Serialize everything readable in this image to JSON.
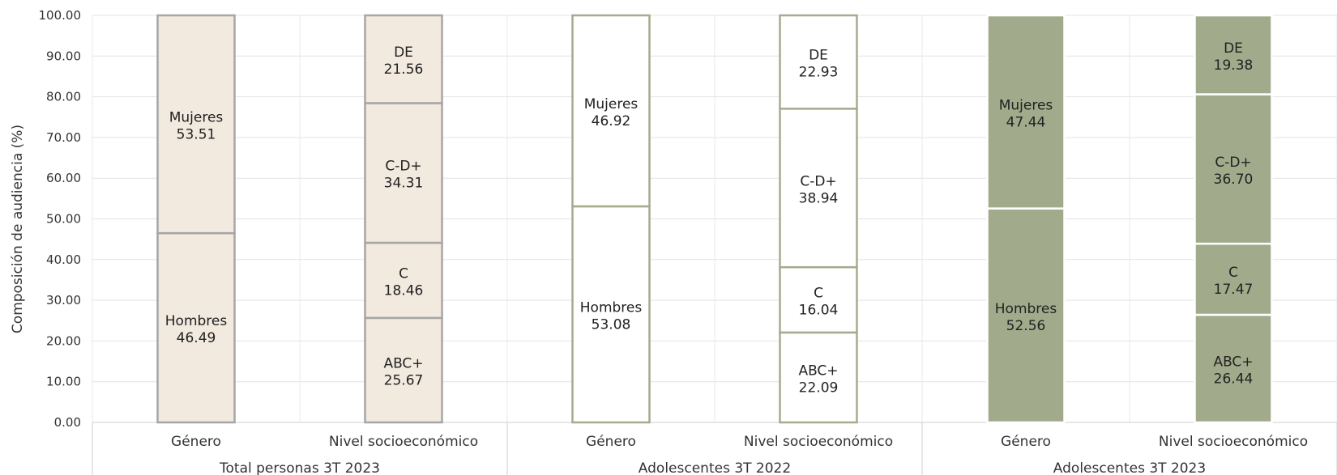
{
  "chart_data": {
    "type": "bar",
    "stacked": true,
    "ylabel": "Composición de audiencia (%)",
    "ylim": [
      0,
      100
    ],
    "yticks": [
      "0.00",
      "10.00",
      "20.00",
      "30.00",
      "40.00",
      "50.00",
      "60.00",
      "70.00",
      "80.00",
      "90.00",
      "100.00"
    ],
    "grid": true,
    "groups": [
      {
        "label": "Total personas 3T 2023",
        "fill": "#f2e9df",
        "stroke": "#a6a6a6",
        "bars": [
          {
            "category": "Género",
            "segments": [
              {
                "name": "Hombres",
                "value": 46.49,
                "value_label": "46.49"
              },
              {
                "name": "Mujeres",
                "value": 53.51,
                "value_label": "53.51"
              }
            ]
          },
          {
            "category": "Nivel socioeconómico",
            "segments": [
              {
                "name": "ABC+",
                "value": 25.67,
                "value_label": "25.67"
              },
              {
                "name": "C",
                "value": 18.46,
                "value_label": "18.46"
              },
              {
                "name": "C-D+",
                "value": 34.31,
                "value_label": "34.31"
              },
              {
                "name": "DE",
                "value": 21.56,
                "value_label": "21.56"
              }
            ]
          }
        ]
      },
      {
        "label": "Adolescentes 3T 2022",
        "fill": "#ffffff",
        "stroke": "#a6ab8d",
        "bars": [
          {
            "category": "Género",
            "segments": [
              {
                "name": "Hombres",
                "value": 53.08,
                "value_label": "53.08"
              },
              {
                "name": "Mujeres",
                "value": 46.92,
                "value_label": "46.92"
              }
            ]
          },
          {
            "category": "Nivel socioeconómico",
            "segments": [
              {
                "name": "ABC+",
                "value": 22.09,
                "value_label": "22.09"
              },
              {
                "name": "C",
                "value": 16.04,
                "value_label": "16.04"
              },
              {
                "name": "C-D+",
                "value": 38.94,
                "value_label": "38.94"
              },
              {
                "name": "DE",
                "value": 22.93,
                "value_label": "22.93"
              }
            ]
          }
        ]
      },
      {
        "label": "Adolescentes 3T 2023",
        "fill": "#a2aa8c",
        "stroke": "#ffffff",
        "bars": [
          {
            "category": "Género",
            "segments": [
              {
                "name": "Hombres",
                "value": 52.56,
                "value_label": "52.56"
              },
              {
                "name": "Mujeres",
                "value": 47.44,
                "value_label": "47.44"
              }
            ]
          },
          {
            "category": "Nivel socioeconómico",
            "segments": [
              {
                "name": "ABC+",
                "value": 26.44,
                "value_label": "26.44"
              },
              {
                "name": "C",
                "value": 17.47,
                "value_label": "17.47"
              },
              {
                "name": "C-D+",
                "value": 36.7,
                "value_label": "36.70"
              },
              {
                "name": "DE",
                "value": 19.38,
                "value_label": "19.38"
              }
            ]
          }
        ]
      }
    ]
  }
}
